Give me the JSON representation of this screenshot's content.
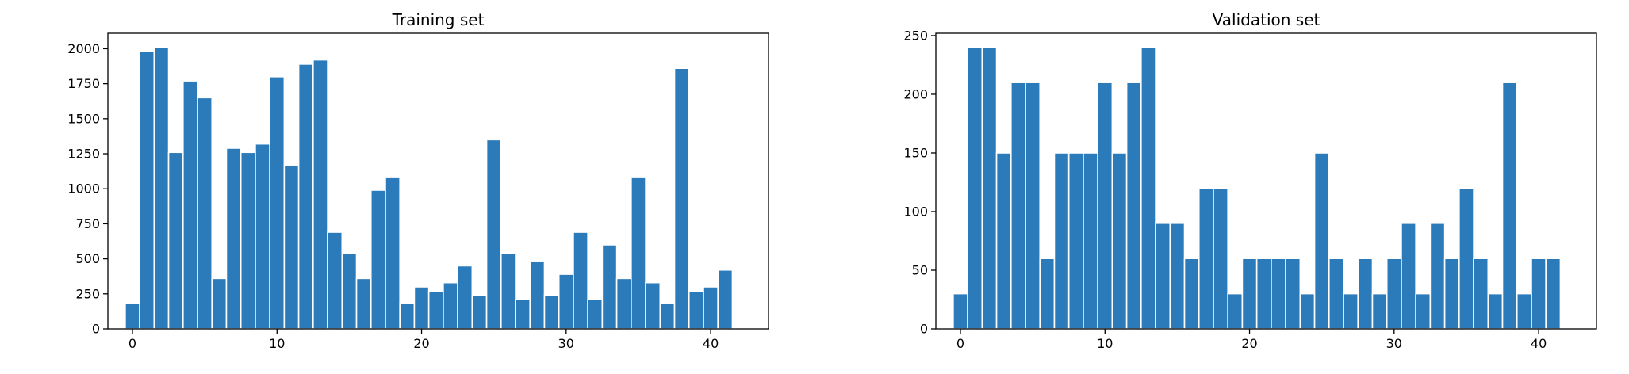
{
  "chart_data": [
    {
      "type": "bar",
      "title": "Training set",
      "xlabel": "",
      "ylabel": "",
      "x": [
        0,
        1,
        2,
        3,
        4,
        5,
        6,
        7,
        8,
        9,
        10,
        11,
        12,
        13,
        14,
        15,
        16,
        17,
        18,
        19,
        20,
        21,
        22,
        23,
        24,
        25,
        26,
        27,
        28,
        29,
        30,
        31,
        32,
        33,
        34,
        35,
        36,
        37,
        38,
        39,
        40,
        41,
        42
      ],
      "values": [
        180,
        1980,
        2010,
        1260,
        1770,
        1650,
        360,
        1290,
        1260,
        1320,
        1800,
        1170,
        1890,
        1920,
        690,
        540,
        360,
        990,
        1080,
        180,
        300,
        270,
        330,
        450,
        240,
        1350,
        540,
        210,
        480,
        240,
        390,
        690,
        210,
        600,
        360,
        1080,
        330,
        180,
        1860,
        270,
        300,
        420,
        0
      ],
      "xlim": [
        -1.7,
        44.0
      ],
      "ylim": [
        0,
        2110
      ],
      "xticks": [
        "0",
        "10",
        "20",
        "30",
        "40"
      ],
      "yticks": [
        "0",
        "250",
        "500",
        "750",
        "1000",
        "1250",
        "1500",
        "1750",
        "2000"
      ],
      "grid": false,
      "color": "#2b7bba"
    },
    {
      "type": "bar",
      "title": "Validation set",
      "xlabel": "",
      "ylabel": "",
      "x": [
        0,
        1,
        2,
        3,
        4,
        5,
        6,
        7,
        8,
        9,
        10,
        11,
        12,
        13,
        14,
        15,
        16,
        17,
        18,
        19,
        20,
        21,
        22,
        23,
        24,
        25,
        26,
        27,
        28,
        29,
        30,
        31,
        32,
        33,
        34,
        35,
        36,
        37,
        38,
        39,
        40,
        41,
        42
      ],
      "values": [
        30,
        240,
        240,
        150,
        210,
        210,
        60,
        150,
        150,
        150,
        210,
        150,
        210,
        240,
        90,
        90,
        60,
        120,
        120,
        30,
        60,
        60,
        60,
        60,
        30,
        150,
        60,
        30,
        60,
        30,
        60,
        90,
        30,
        90,
        60,
        120,
        60,
        30,
        210,
        30,
        60,
        60,
        0
      ],
      "xlim": [
        -1.7,
        44.0
      ],
      "ylim": [
        0,
        252
      ],
      "xticks": [
        "0",
        "10",
        "20",
        "30",
        "40"
      ],
      "yticks": [
        "0",
        "50",
        "100",
        "150",
        "200",
        "250"
      ],
      "grid": false,
      "color": "#2b7bba"
    }
  ]
}
